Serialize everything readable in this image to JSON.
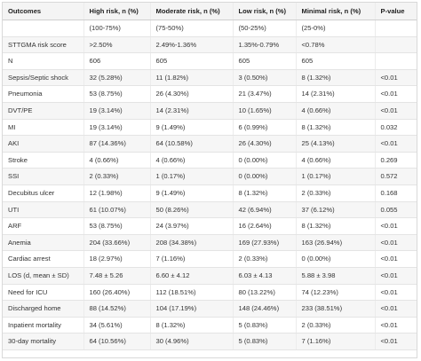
{
  "table": {
    "headers": [
      "Outcomes",
      "High risk, n (%)",
      "Moderate risk, n (%)",
      "Low risk, n (%)",
      "Minimal risk, n (%)",
      "P-value"
    ],
    "rows": [
      [
        "",
        "(100-75%)",
        "(75-50%)",
        "(50-25%)",
        "(25-0%)",
        ""
      ],
      [
        "STTGMA risk score",
        ">2.50%",
        "2.49%-1.36%",
        "1.35%-0.79%",
        "<0.78%",
        ""
      ],
      [
        "N",
        "606",
        "605",
        "605",
        "605",
        ""
      ],
      [
        "Sepsis/Septic shock",
        "32 (5.28%)",
        "11 (1.82%)",
        "3 (0.50%)",
        "8 (1.32%)",
        "<0.01"
      ],
      [
        "Pneumonia",
        "53 (8.75%)",
        "26 (4.30%)",
        "21 (3.47%)",
        "14 (2.31%)",
        "<0.01"
      ],
      [
        "DVT/PE",
        "19 (3.14%)",
        "14 (2.31%)",
        "10 (1.65%)",
        "4 (0.66%)",
        "<0.01"
      ],
      [
        "MI",
        "19 (3.14%)",
        "9 (1.49%)",
        "6 (0.99%)",
        "8 (1.32%)",
        "0.032"
      ],
      [
        "AKI",
        "87 (14.36%)",
        "64 (10.58%)",
        "26 (4.30%)",
        "25 (4.13%)",
        "<0.01"
      ],
      [
        "Stroke",
        "4 (0.66%)",
        "4 (0.66%)",
        "0 (0.00%)",
        "4 (0.66%)",
        "0.269"
      ],
      [
        "SSI",
        "2 (0.33%)",
        "1 (0.17%)",
        "0 (0.00%)",
        "1 (0.17%)",
        "0.572"
      ],
      [
        "Decubitus ulcer",
        "12 (1.98%)",
        "9 (1.49%)",
        "8 (1.32%)",
        "2 (0.33%)",
        "0.168"
      ],
      [
        "UTI",
        "61 (10.07%)",
        "50 (8.26%)",
        "42 (6.94%)",
        "37 (6.12%)",
        "0.055"
      ],
      [
        "ARF",
        "53 (8.75%)",
        "24 (3.97%)",
        "16 (2.64%)",
        "8 (1.32%)",
        "<0.01"
      ],
      [
        "Anemia",
        "204 (33.66%)",
        "208 (34.38%)",
        "169 (27.93%)",
        "163 (26.94%)",
        "<0.01"
      ],
      [
        "Cardiac arrest",
        "18 (2.97%)",
        "7 (1.16%)",
        "2 (0.33%)",
        "0 (0.00%)",
        "<0.01"
      ],
      [
        "LOS (d, mean ± SD)",
        "7.48 ± 5.26",
        "6.60 ± 4.12",
        "6.03 ± 4.13",
        "5.88 ± 3.98",
        "<0.01"
      ],
      [
        "Need for ICU",
        "160 (26.40%)",
        "112 (18.51%)",
        "80 (13.22%)",
        "74 (12.23%)",
        "<0.01"
      ],
      [
        "Discharged home",
        "88 (14.52%)",
        "104 (17.19%)",
        "148 (24.46%)",
        "233 (38.51%)",
        "<0.01"
      ],
      [
        "Inpatient mortality",
        "34 (5.61%)",
        "8 (1.32%)",
        "5 (0.83%)",
        "2 (0.33%)",
        "<0.01"
      ],
      [
        "30-day mortality",
        "64 (10.56%)",
        "30 (4.96%)",
        "5 (0.83%)",
        "7 (1.16%)",
        "<0.01"
      ]
    ]
  }
}
